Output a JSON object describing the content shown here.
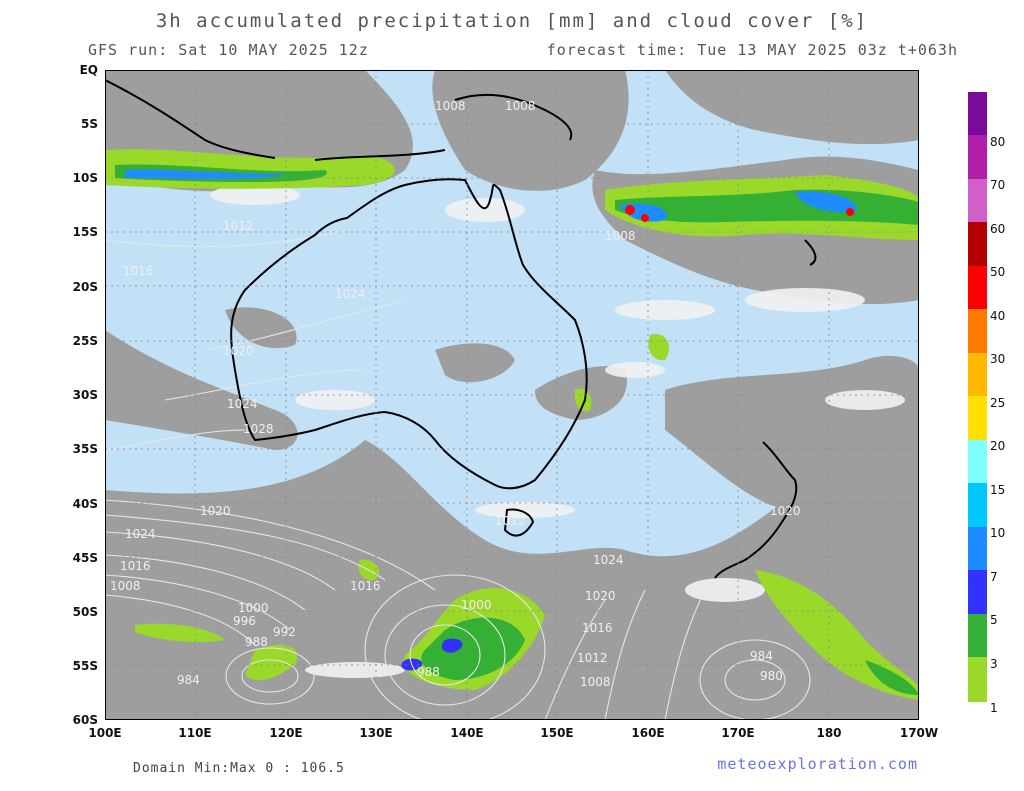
{
  "header": {
    "title": "3h accumulated precipitation [mm] and cloud cover [%]",
    "run": "GFS run: Sat 10 MAY 2025 12z",
    "forecast": "forecast time: Tue 13 MAY 2025 03z  t+063h"
  },
  "axes": {
    "lat": [
      "EQ",
      "5S",
      "10S",
      "15S",
      "20S",
      "25S",
      "30S",
      "35S",
      "40S",
      "45S",
      "50S",
      "55S",
      "60S"
    ],
    "lon": [
      "100E",
      "110E",
      "120E",
      "130E",
      "140E",
      "150E",
      "160E",
      "170E",
      "180",
      "170W"
    ]
  },
  "legend": {
    "labels": [
      "80",
      "70",
      "60",
      "50",
      "40",
      "30",
      "25",
      "20",
      "15",
      "10",
      "7",
      "5",
      "3",
      "1"
    ],
    "colors": [
      "#7a0a9a",
      "#b01ea8",
      "#d060c8",
      "#b30000",
      "#ff0000",
      "#ff7a00",
      "#ffb800",
      "#ffe000",
      "#80ffff",
      "#00c8ff",
      "#1e8cff",
      "#3232ff",
      "#34b034",
      "#9ad82a"
    ]
  },
  "isobars": [
    "1008",
    "1008",
    "1012",
    "1016",
    "1020",
    "1024",
    "1028",
    "1024",
    "1020",
    "1024",
    "1016",
    "1008",
    "1000",
    "996",
    "992",
    "988",
    "984",
    "988",
    "1000",
    "1008",
    "1012",
    "1016",
    "1020",
    "1024",
    "1008",
    "984",
    "980",
    "1012",
    "1016",
    "1020"
  ],
  "footer": {
    "minmax": "Domain Min:Max 0 : 106.5",
    "credit": "meteoexploration.com"
  }
}
